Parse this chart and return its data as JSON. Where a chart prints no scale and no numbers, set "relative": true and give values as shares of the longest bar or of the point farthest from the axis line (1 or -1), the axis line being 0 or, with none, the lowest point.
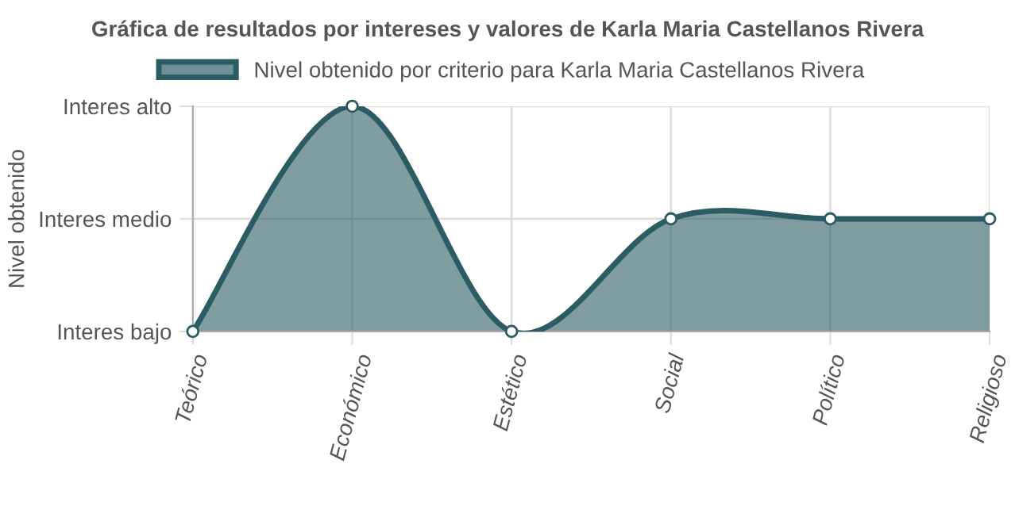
{
  "chart_data": {
    "type": "area",
    "title": "Gráfica de resultados por intereses y valores de Karla Maria Castellanos Rivera",
    "categories": [
      "Teórico",
      "Económico",
      "Estético",
      "Social",
      "Político",
      "Religioso"
    ],
    "series": [
      {
        "name": "Nivel obtenido por criterio para Karla Maria Castellanos Rivera",
        "color": "#2b5c64",
        "values": [
          0,
          1,
          0,
          0.5,
          0.5,
          0.5
        ]
      }
    ],
    "relative": true,
    "annotations": [
      "Nivel obtenido",
      "Interes bajo",
      "Interes medio",
      "Interes alto"
    ],
    "grid": true,
    "legend": "top",
    "marker": "circle",
    "line_style": "solid"
  }
}
